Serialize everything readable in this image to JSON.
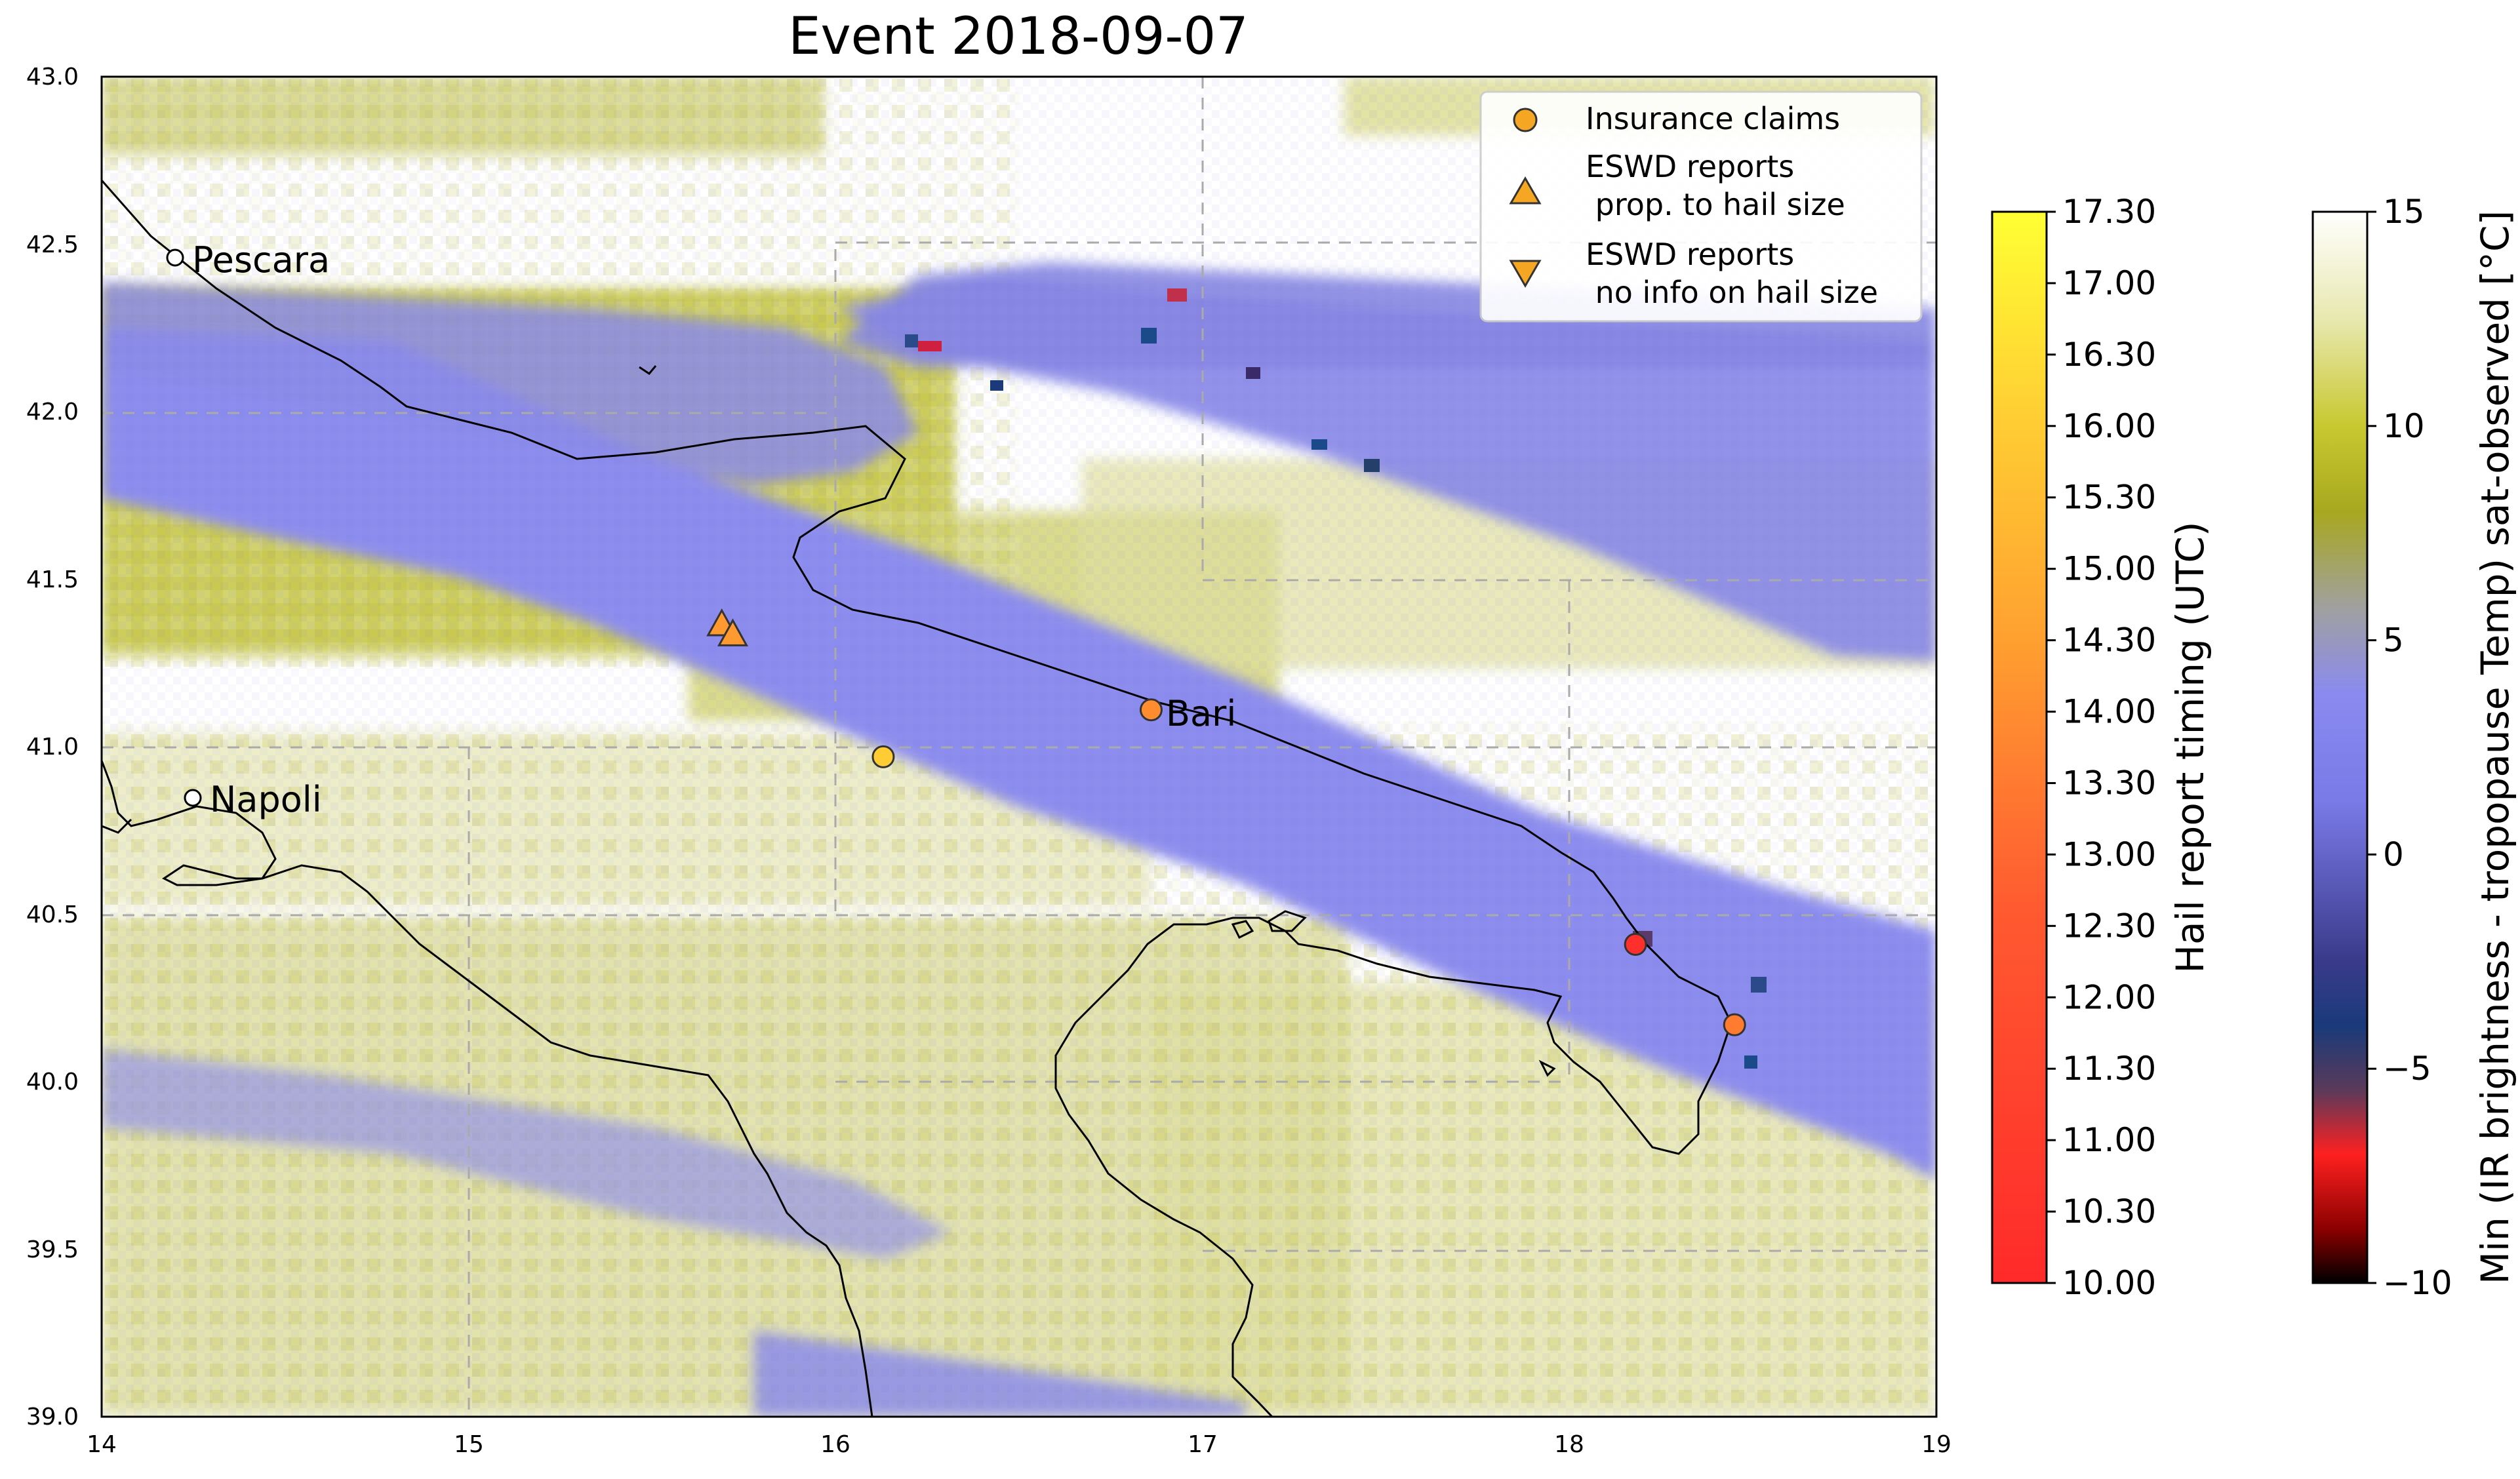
{
  "title": "Event 2018-09-07",
  "map": {
    "lon_range": [
      14,
      19
    ],
    "lat_range": [
      39.0,
      43.0
    ],
    "x_ticks": [
      "14",
      "15",
      "16",
      "17",
      "18",
      "19"
    ],
    "y_ticks": [
      "39.0",
      "39.5",
      "40.0",
      "40.5",
      "41.0",
      "41.5",
      "42.0",
      "42.5",
      "43.0"
    ],
    "cities": [
      {
        "name": "Pescara",
        "lon": 14.2,
        "lat": 42.46
      },
      {
        "name": "Bari",
        "lon": 16.87,
        "lat": 41.11
      },
      {
        "name": "Napoli",
        "lon": 14.25,
        "lat": 40.85
      }
    ]
  },
  "legend": {
    "claims": "Insurance claims",
    "eswd_size_line1": "ESWD reports",
    "eswd_size_line2": " prop. to hail size",
    "eswd_noinfo_line1": "ESWD reports",
    "eswd_noinfo_line2": " no info on hail size"
  },
  "colorbar_timing": {
    "label": "Hail report timing (UTC)",
    "ticks": [
      "10.00",
      "10.30",
      "11.00",
      "11.30",
      "12.00",
      "12.30",
      "13.00",
      "13.30",
      "14.00",
      "14.30",
      "15.00",
      "15.30",
      "16.00",
      "16.30",
      "17.00",
      "17.30"
    ]
  },
  "colorbar_temp": {
    "label": "Min (IR brightness - tropopause Temp) sat-observed [°C]",
    "ticks": [
      "15",
      "10",
      "5",
      "0",
      "−5",
      "−10"
    ]
  },
  "chart_data": {
    "type": "scatter",
    "insurance_claims": [
      {
        "lon": 16.86,
        "lat": 41.11,
        "time_utc": 14.0
      },
      {
        "lon": 16.13,
        "lat": 40.97,
        "time_utc": 16.0
      },
      {
        "lon": 18.18,
        "lat": 40.41,
        "time_utc": 10.3
      },
      {
        "lon": 18.45,
        "lat": 40.17,
        "time_utc": 13.5
      }
    ],
    "eswd_reports_size": [
      {
        "lon": 15.69,
        "lat": 41.36,
        "time_utc": 14.3
      },
      {
        "lon": 15.72,
        "lat": 41.33,
        "time_utc": 14.3
      }
    ],
    "colors": {
      "cold_cloud": "#8a8ae8",
      "warm_olive": "#c2c22a",
      "marker_edge": "#333333"
    }
  }
}
